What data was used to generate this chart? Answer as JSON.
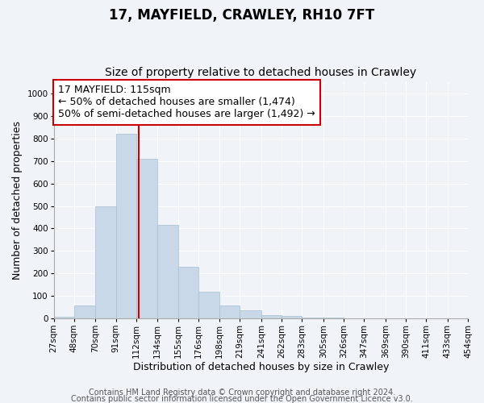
{
  "title": "17, MAYFIELD, CRAWLEY, RH10 7FT",
  "subtitle": "Size of property relative to detached houses in Crawley",
  "xlabel": "Distribution of detached houses by size in Crawley",
  "ylabel": "Number of detached properties",
  "bar_left_edges": [
    27,
    48,
    70,
    91,
    112,
    134,
    155,
    176,
    198,
    219,
    241,
    262,
    283,
    305,
    326,
    347,
    369,
    390,
    411,
    433
  ],
  "bar_widths": [
    21,
    22,
    21,
    21,
    22,
    21,
    21,
    22,
    21,
    22,
    21,
    21,
    22,
    21,
    21,
    22,
    21,
    21,
    22,
    21
  ],
  "bar_heights": [
    8,
    56,
    500,
    820,
    710,
    415,
    230,
    118,
    57,
    35,
    15,
    12,
    3,
    3,
    0,
    0,
    0,
    0,
    0,
    0
  ],
  "tick_labels": [
    "27sqm",
    "48sqm",
    "70sqm",
    "91sqm",
    "112sqm",
    "134sqm",
    "155sqm",
    "176sqm",
    "198sqm",
    "219sqm",
    "241sqm",
    "262sqm",
    "283sqm",
    "305sqm",
    "326sqm",
    "347sqm",
    "369sqm",
    "390sqm",
    "411sqm",
    "433sqm",
    "454sqm"
  ],
  "tick_positions": [
    27,
    48,
    70,
    91,
    112,
    134,
    155,
    176,
    198,
    219,
    241,
    262,
    283,
    305,
    326,
    347,
    369,
    390,
    411,
    433,
    454
  ],
  "bar_color": "#c8d8e8",
  "bar_edge_color": "#a8bfd0",
  "marker_x": 115,
  "marker_line_color": "#cc0000",
  "ylim": [
    0,
    1050
  ],
  "xlim": [
    27,
    454
  ],
  "annotation_title": "17 MAYFIELD: 115sqm",
  "annotation_line1": "← 50% of detached houses are smaller (1,474)",
  "annotation_line2": "50% of semi-detached houses are larger (1,492) →",
  "annotation_box_color": "#ffffff",
  "annotation_box_edge": "#cc0000",
  "footer1": "Contains HM Land Registry data © Crown copyright and database right 2024.",
  "footer2": "Contains public sector information licensed under the Open Government Licence v3.0.",
  "background_color": "#f0f4f8",
  "grid_color": "#ffffff",
  "title_fontsize": 12,
  "subtitle_fontsize": 10,
  "axis_label_fontsize": 9,
  "tick_fontsize": 7.5,
  "annotation_fontsize": 9,
  "footer_fontsize": 7
}
